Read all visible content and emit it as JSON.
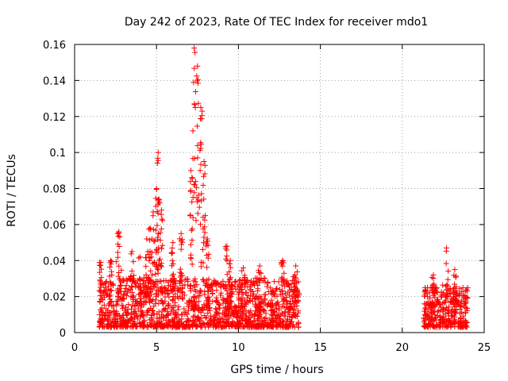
{
  "chart_data": {
    "type": "scatter",
    "title": "Day 242 of 2023, Rate Of TEC Index for receiver mdo1",
    "xlabel": "GPS time / hours",
    "ylabel": "ROTI / TECUs",
    "xlim": [
      0,
      25
    ],
    "ylim": [
      0,
      0.16
    ],
    "xticks": [
      0,
      5,
      10,
      15,
      20,
      25
    ],
    "yticks": [
      0,
      0.02,
      0.04,
      0.06,
      0.08,
      0.1,
      0.12,
      0.14,
      0.16
    ],
    "xtick_labels": [
      "0",
      "5",
      "10",
      "15",
      "20",
      "25"
    ],
    "ytick_labels": [
      "0",
      "0.02",
      "0.04",
      "0.06",
      "0.08",
      "0.1",
      "0.12",
      "0.14",
      "0.16"
    ],
    "grid": true,
    "marker": "+",
    "color": "#ff0000",
    "segments": [
      {
        "x_start": 1.5,
        "x_end": 13.7,
        "typical_range": [
          0.003,
          0.03
        ]
      },
      {
        "x_start": 21.3,
        "x_end": 24.0,
        "typical_range": [
          0.003,
          0.025
        ]
      }
    ],
    "peaks": [
      {
        "x": 1.6,
        "y": 0.039
      },
      {
        "x": 2.2,
        "y": 0.04
      },
      {
        "x": 2.7,
        "y": 0.056
      },
      {
        "x": 3.5,
        "y": 0.045
      },
      {
        "x": 4.0,
        "y": 0.042
      },
      {
        "x": 4.4,
        "y": 0.052
      },
      {
        "x": 4.6,
        "y": 0.058
      },
      {
        "x": 4.8,
        "y": 0.067
      },
      {
        "x": 5.0,
        "y": 0.08
      },
      {
        "x": 5.1,
        "y": 0.1
      },
      {
        "x": 5.3,
        "y": 0.068
      },
      {
        "x": 6.0,
        "y": 0.05
      },
      {
        "x": 6.5,
        "y": 0.055
      },
      {
        "x": 7.1,
        "y": 0.09
      },
      {
        "x": 7.3,
        "y": 0.158
      },
      {
        "x": 7.5,
        "y": 0.148
      },
      {
        "x": 7.7,
        "y": 0.125
      },
      {
        "x": 7.9,
        "y": 0.095
      },
      {
        "x": 8.1,
        "y": 0.052
      },
      {
        "x": 9.3,
        "y": 0.048
      },
      {
        "x": 9.5,
        "y": 0.04
      },
      {
        "x": 10.3,
        "y": 0.036
      },
      {
        "x": 11.3,
        "y": 0.037
      },
      {
        "x": 12.7,
        "y": 0.04
      },
      {
        "x": 13.5,
        "y": 0.037
      },
      {
        "x": 21.9,
        "y": 0.032
      },
      {
        "x": 22.7,
        "y": 0.047
      },
      {
        "x": 23.2,
        "y": 0.035
      }
    ]
  }
}
